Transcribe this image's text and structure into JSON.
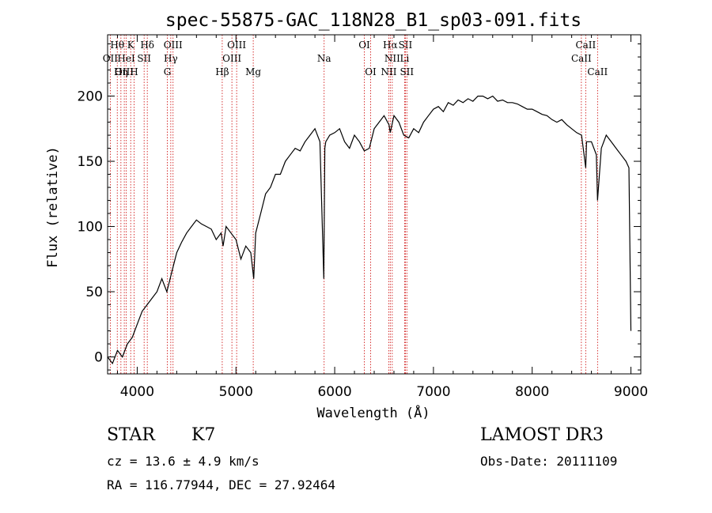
{
  "chart_data": {
    "type": "line",
    "title": "spec-55875-GAC_118N28_B1_sp03-091.fits",
    "xlabel": "Wavelength (Å)",
    "ylabel": "Flux (relative)",
    "xlim": [
      3700,
      9100
    ],
    "ylim": [
      -13,
      247
    ],
    "xticks": [
      4000,
      5000,
      6000,
      7000,
      8000,
      9000
    ],
    "yticks": [
      0,
      50,
      100,
      150,
      200
    ],
    "series": [
      {
        "color": "#000000",
        "x": [
          3700,
          3750,
          3800,
          3850,
          3900,
          3950,
          4000,
          4050,
          4100,
          4150,
          4200,
          4250,
          4300,
          4350,
          4400,
          4450,
          4500,
          4550,
          4600,
          4650,
          4700,
          4750,
          4800,
          4850,
          4870,
          4900,
          4950,
          5000,
          5050,
          5100,
          5150,
          5180,
          5200,
          5250,
          5300,
          5350,
          5400,
          5450,
          5500,
          5550,
          5600,
          5650,
          5700,
          5750,
          5800,
          5850,
          5890,
          5900,
          5910,
          5950,
          6000,
          6050,
          6100,
          6150,
          6200,
          6250,
          6300,
          6350,
          6400,
          6450,
          6500,
          6550,
          6563,
          6600,
          6650,
          6700,
          6750,
          6800,
          6850,
          6900,
          6950,
          7000,
          7050,
          7100,
          7150,
          7200,
          7250,
          7300,
          7350,
          7400,
          7450,
          7500,
          7550,
          7600,
          7650,
          7700,
          7750,
          7800,
          7850,
          7900,
          7950,
          8000,
          8050,
          8100,
          8150,
          8200,
          8250,
          8300,
          8350,
          8400,
          8450,
          8500,
          8542,
          8550,
          8600,
          8650,
          8662,
          8700,
          8750,
          8800,
          8850,
          8900,
          8950,
          8980,
          9000
        ],
        "y": [
          0,
          -5,
          5,
          0,
          10,
          15,
          25,
          35,
          40,
          45,
          50,
          60,
          50,
          65,
          80,
          88,
          95,
          100,
          105,
          102,
          100,
          98,
          90,
          95,
          85,
          100,
          95,
          90,
          75,
          85,
          80,
          60,
          95,
          110,
          125,
          130,
          140,
          140,
          150,
          155,
          160,
          158,
          165,
          170,
          175,
          165,
          60,
          160,
          165,
          170,
          172,
          175,
          165,
          160,
          170,
          165,
          158,
          160,
          175,
          180,
          185,
          178,
          172,
          185,
          180,
          170,
          168,
          175,
          172,
          180,
          185,
          190,
          192,
          188,
          195,
          193,
          197,
          195,
          198,
          196,
          200,
          200,
          198,
          200,
          196,
          197,
          195,
          195,
          194,
          192,
          190,
          190,
          188,
          186,
          185,
          182,
          180,
          182,
          178,
          175,
          172,
          170,
          145,
          165,
          165,
          155,
          120,
          160,
          170,
          165,
          160,
          155,
          150,
          145,
          20
        ]
      }
    ],
    "spectral_lines": [
      {
        "label": "Hθ",
        "x": 3798,
        "row": 0
      },
      {
        "label": "OII",
        "x": 3727,
        "row": 1
      },
      {
        "label": "OIII",
        "x": 3869,
        "row": 2
      },
      {
        "label": "K",
        "x": 3934,
        "row": 0
      },
      {
        "label": "HeI",
        "x": 3889,
        "row": 1
      },
      {
        "label": "Hη",
        "x": 3835,
        "row": 2
      },
      {
        "label": "SII",
        "x": 4070,
        "row": 1
      },
      {
        "label": "Hδ",
        "x": 4102,
        "row": 0
      },
      {
        "label": "H",
        "x": 3968,
        "row": 2
      },
      {
        "label": "OIII",
        "x": 4363,
        "row": 0
      },
      {
        "label": "Hγ",
        "x": 4340,
        "row": 1
      },
      {
        "label": "G",
        "x": 4305,
        "row": 2
      },
      {
        "label": "OIII",
        "x": 5007,
        "row": 0
      },
      {
        "label": "OIII",
        "x": 4959,
        "row": 1
      },
      {
        "label": "Hβ",
        "x": 4861,
        "row": 2
      },
      {
        "label": "Mg",
        "x": 5175,
        "row": 2
      },
      {
        "label": "Na",
        "x": 5893,
        "row": 1
      },
      {
        "label": "OI",
        "x": 6300,
        "row": 0
      },
      {
        "label": "OI",
        "x": 6364,
        "row": 2
      },
      {
        "label": "Hα",
        "x": 6563,
        "row": 0
      },
      {
        "label": "SII",
        "x": 6716,
        "row": 0
      },
      {
        "label": "NII",
        "x": 6583,
        "row": 1
      },
      {
        "label": "Li",
        "x": 6708,
        "row": 1
      },
      {
        "label": "NII",
        "x": 6548,
        "row": 2
      },
      {
        "label": "SII",
        "x": 6731,
        "row": 2
      },
      {
        "label": "CaII",
        "x": 8542,
        "row": 0
      },
      {
        "label": "CaII",
        "x": 8498,
        "row": 1
      },
      {
        "label": "CaII",
        "x": 8662,
        "row": 2
      }
    ]
  },
  "info": {
    "object_type": "STAR",
    "subclass": "K7",
    "survey": "LAMOST DR3",
    "redshift": "cz = 13.6 ± 4.9 km/s",
    "obs_date": "Obs-Date: 20111109",
    "coords": "RA = 116.77944, DEC =  27.92464"
  }
}
